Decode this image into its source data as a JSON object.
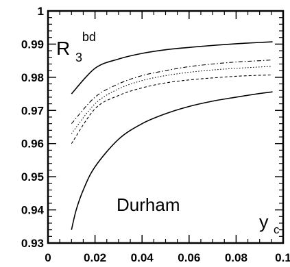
{
  "chart_data": {
    "type": "line",
    "title": "",
    "xlabel": "y",
    "xlabel_sub": "c",
    "ylabel": "R",
    "ylabel_sub": "3",
    "ylabel_sup": "bd",
    "annotation": "Durham",
    "xlim": [
      0,
      0.1
    ],
    "ylim": [
      0.93,
      1.0
    ],
    "x_ticks": [
      0,
      0.02,
      0.04,
      0.06,
      0.08,
      0.1
    ],
    "x_tick_labels": [
      "0",
      "0.02",
      "0.04",
      "0.06",
      "0.08",
      "0.1"
    ],
    "y_ticks": [
      0.93,
      0.94,
      0.95,
      0.96,
      0.97,
      0.98,
      0.99,
      1.0
    ],
    "y_tick_labels": [
      "0.93",
      "0.94",
      "0.95",
      "0.96",
      "0.97",
      "0.98",
      "0.99",
      "1"
    ],
    "grid": false,
    "legend": "none",
    "series": [
      {
        "style": "solid",
        "x": [
          0.01,
          0.02,
          0.03,
          0.04,
          0.05,
          0.06,
          0.07,
          0.08,
          0.09,
          0.0955
        ],
        "y": [
          0.975,
          0.9827,
          0.9855,
          0.9872,
          0.9883,
          0.989,
          0.9896,
          0.9901,
          0.9905,
          0.9907
        ]
      },
      {
        "style": "dashdot",
        "x": [
          0.01,
          0.02,
          0.03,
          0.04,
          0.05,
          0.06,
          0.07,
          0.08,
          0.09,
          0.095
        ],
        "y": [
          0.966,
          0.974,
          0.978,
          0.9805,
          0.982,
          0.9832,
          0.984,
          0.9846,
          0.985,
          0.9852
        ]
      },
      {
        "style": "dotted",
        "x": [
          0.01,
          0.02,
          0.03,
          0.04,
          0.05,
          0.06,
          0.07,
          0.08,
          0.09,
          0.095
        ],
        "y": [
          0.963,
          0.972,
          0.9765,
          0.979,
          0.9805,
          0.9815,
          0.9822,
          0.9827,
          0.9831,
          0.9833
        ]
      },
      {
        "style": "dashed",
        "x": [
          0.01,
          0.02,
          0.03,
          0.04,
          0.05,
          0.06,
          0.07,
          0.08,
          0.09,
          0.095
        ],
        "y": [
          0.96,
          0.9705,
          0.9745,
          0.9768,
          0.9783,
          0.9792,
          0.9798,
          0.9803,
          0.9806,
          0.9807
        ]
      },
      {
        "style": "solid",
        "x": [
          0.01,
          0.012,
          0.015,
          0.02,
          0.03,
          0.04,
          0.05,
          0.06,
          0.07,
          0.08,
          0.09,
          0.0955
        ],
        "y": [
          0.934,
          0.94,
          0.946,
          0.953,
          0.9613,
          0.966,
          0.969,
          0.9712,
          0.9728,
          0.974,
          0.9751,
          0.9756
        ]
      }
    ]
  }
}
